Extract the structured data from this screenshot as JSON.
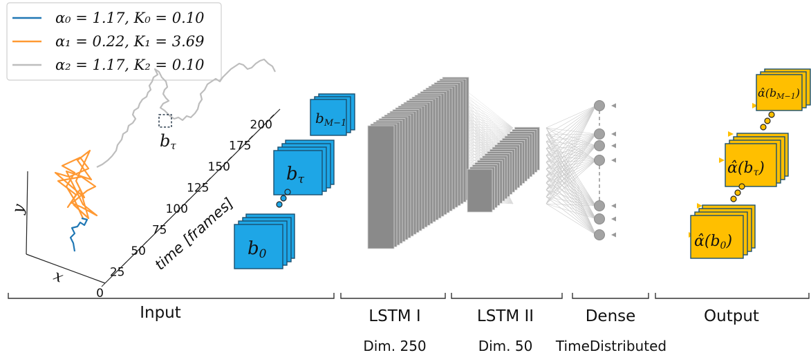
{
  "legend": {
    "entries": [
      {
        "label": "α₀ = 1.17, K₀ = 0.10",
        "color": "#1f77b4"
      },
      {
        "label": "α₁ = 0.22, K₁ = 3.69",
        "color": "#ff9933"
      },
      {
        "label": "α₂ = 1.17, K₂ = 0.10",
        "color": "#bdbdbd"
      }
    ]
  },
  "axes": {
    "x_label": "x",
    "y_label": "y",
    "time_label": "time [frames]",
    "time_ticks": [
      "0",
      "25",
      "50",
      "75",
      "100",
      "125",
      "150",
      "175",
      "200"
    ]
  },
  "segment_label": "b_τ",
  "input_blocks": [
    {
      "label": "b_{M-1}"
    },
    {
      "label": "b_τ"
    },
    {
      "label": "b_0"
    }
  ],
  "output_blocks": [
    {
      "label": "α̂(b_{M-1})"
    },
    {
      "label": "α̂(b_τ)"
    },
    {
      "label": "α̂(b_0)"
    }
  ],
  "sections": [
    {
      "name": "Input",
      "dim": ""
    },
    {
      "name": "LSTM I",
      "dim": "Dim. 250"
    },
    {
      "name": "LSTM II",
      "dim": "Dim. 50"
    },
    {
      "name": "Dense",
      "dim": "TimeDistributed"
    },
    {
      "name": "Output",
      "dim": ""
    }
  ],
  "colors": {
    "input_block": "#1ea6e6",
    "output_block": "#ffbf00",
    "lstm": "#8c8c8c",
    "dense_node": "#9e9e9e"
  }
}
